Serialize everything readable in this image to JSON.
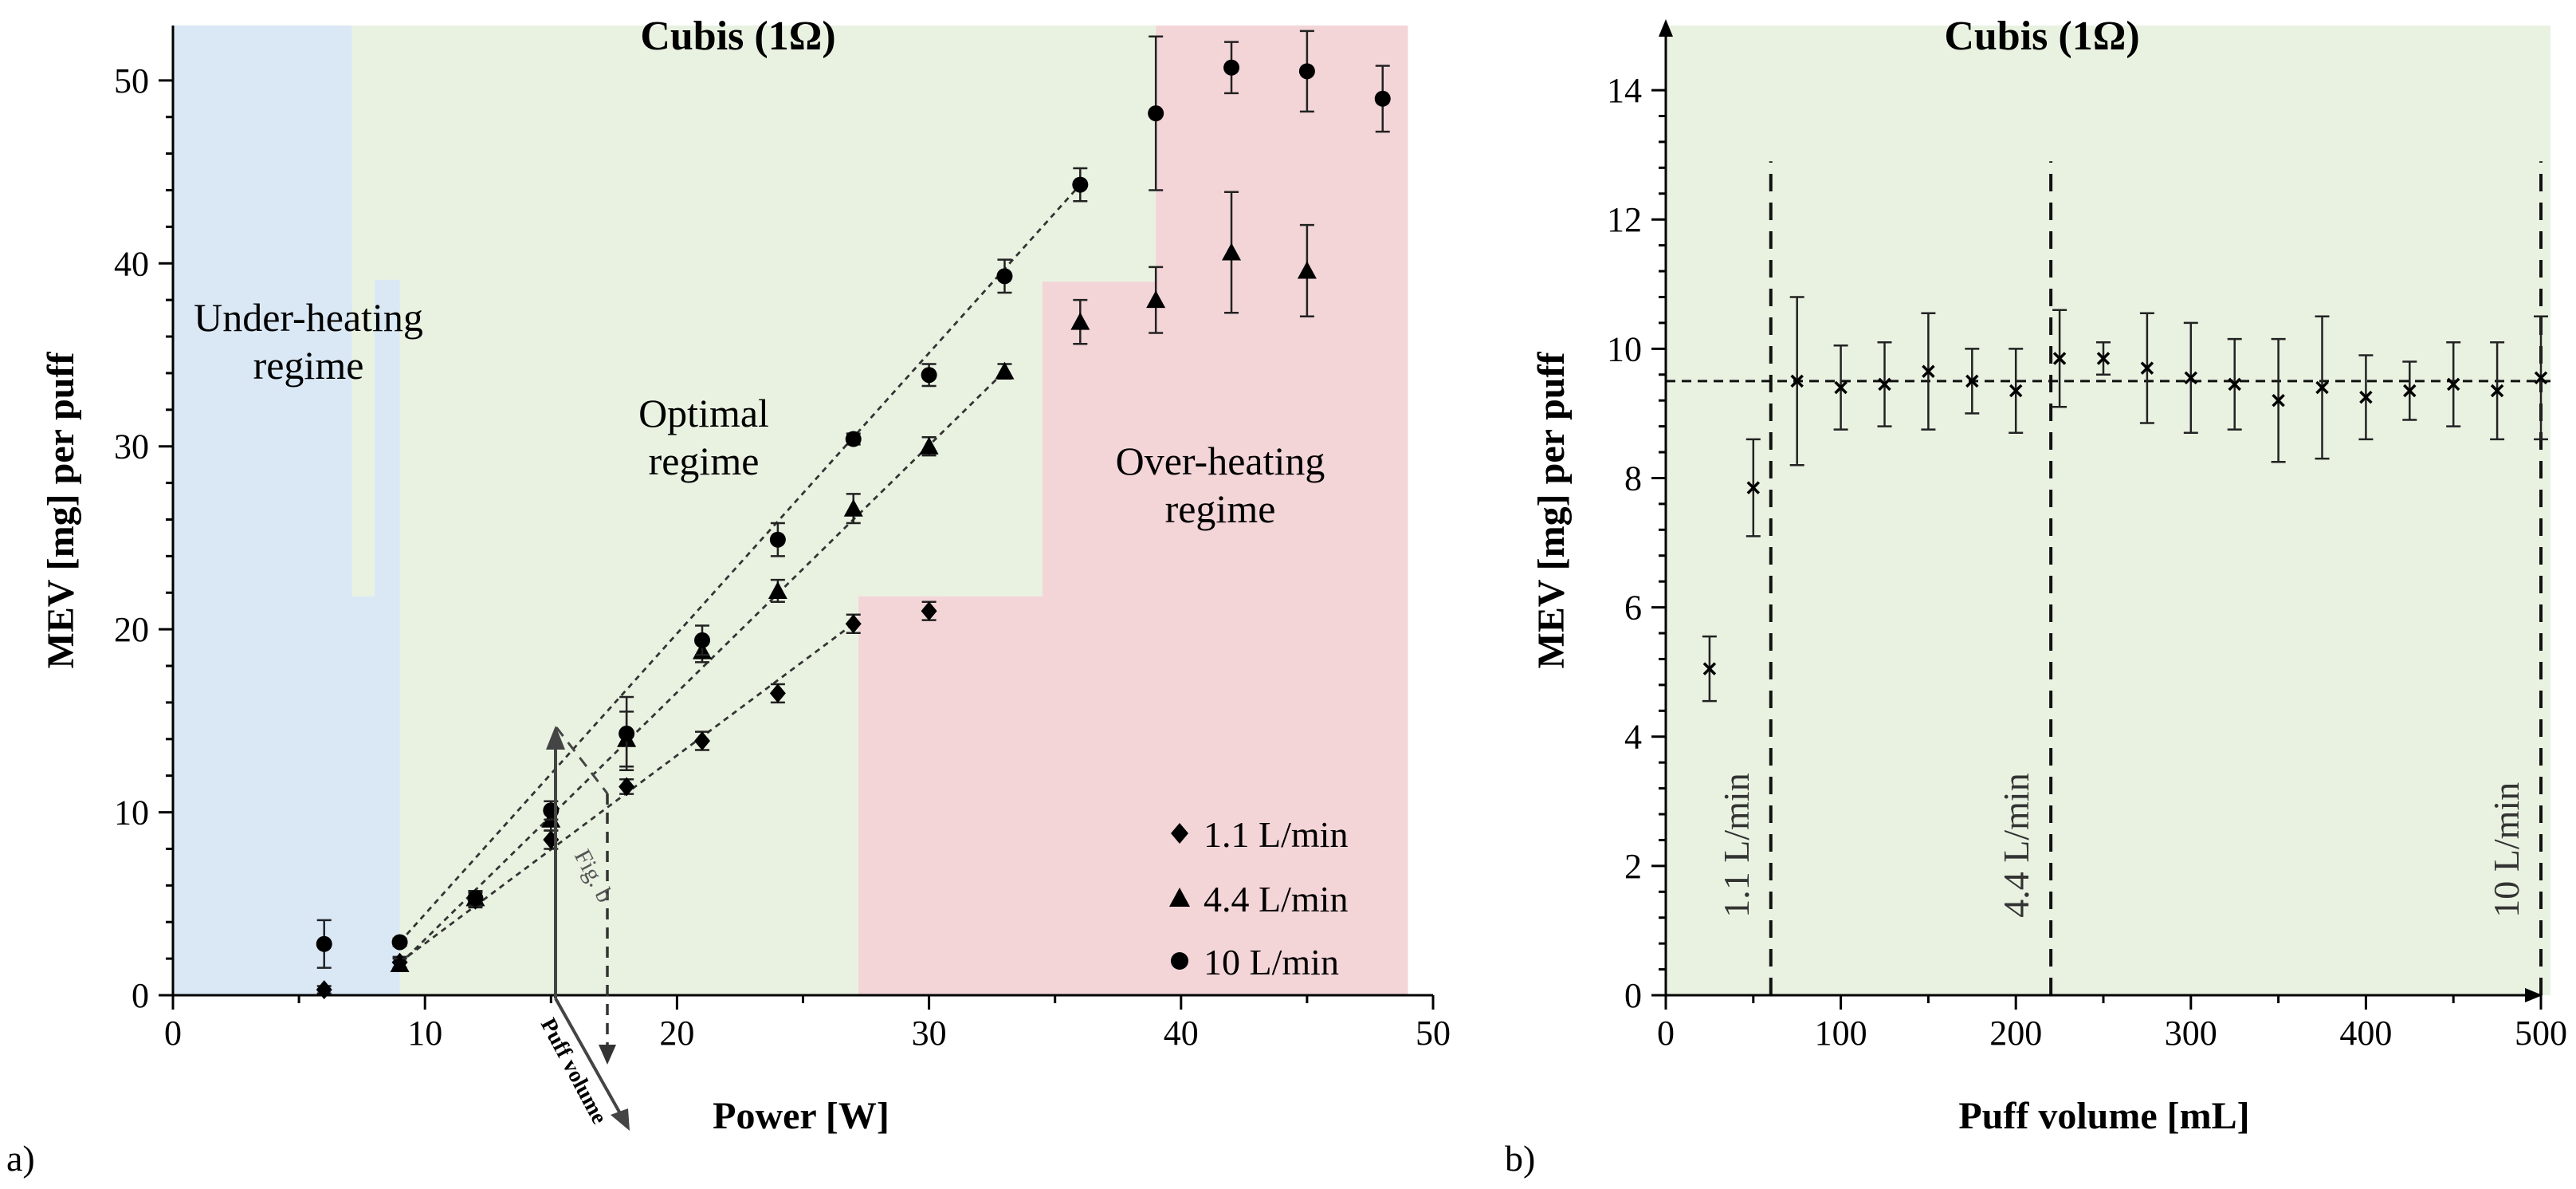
{
  "panel_labels": {
    "a": "a)",
    "b": "b)"
  },
  "colors": {
    "under_bg": "#dae8f5",
    "optimal_bg": "#e9f2e1",
    "over_bg": "#f3d5d8",
    "under_text": "#2e75b6",
    "optimal_text": "#4f7a33",
    "over_text": "#c00000",
    "marker": "#000000"
  },
  "chart_data": [
    {
      "id": "a",
      "type": "scatter",
      "title": "Cubis (1Ω)",
      "xlabel": "Power [W]",
      "ylabel": "MEV [mg] per puff",
      "xlim": [
        0,
        50
      ],
      "ylim": [
        0,
        53
      ],
      "xticks": [
        0,
        10,
        20,
        30,
        40,
        50
      ],
      "yticks": [
        0,
        10,
        20,
        30,
        40,
        50
      ],
      "regimes": [
        {
          "name": "under",
          "label_lines": [
            "Under-heating",
            "regime"
          ],
          "steps": [
            [
              0,
              53
            ],
            [
              7.1,
              53
            ],
            [
              7.1,
              21.8
            ],
            [
              8.0,
              21.8
            ],
            [
              8.0,
              39.1
            ],
            [
              9.0,
              39.1
            ],
            [
              9.0,
              53
            ]
          ]
        },
        {
          "name": "optimal",
          "label_lines": [
            "Optimal",
            "regime"
          ]
        },
        {
          "name": "over",
          "label_lines": [
            "Over-heating",
            "regime"
          ],
          "steps": [
            [
              27.2,
              0
            ],
            [
              27.2,
              21.8
            ],
            [
              34.5,
              21.8
            ],
            [
              34.5,
              39.0
            ],
            [
              39.0,
              39.0
            ],
            [
              39.0,
              53
            ],
            [
              49.0,
              53
            ],
            [
              49.0,
              0
            ]
          ]
        }
      ],
      "series": [
        {
          "name": "1.1 L/min",
          "marker": "diamond",
          "x": [
            6,
            9,
            12,
            15,
            18,
            21,
            24,
            27,
            30
          ],
          "y": [
            0.3,
            1.8,
            5.2,
            8.5,
            11.4,
            13.9,
            16.5,
            20.3,
            21.0
          ],
          "err": [
            0.2,
            0.3,
            0.4,
            0.5,
            0.4,
            0.5,
            0.5,
            0.5,
            0.5
          ],
          "fit": [
            [
              9,
              1.8
            ],
            [
              27,
              20.3
            ]
          ]
        },
        {
          "name": "4.4 L/min",
          "marker": "triangle",
          "x": [
            9,
            12,
            15,
            18,
            21,
            24,
            27,
            30,
            33,
            36,
            39,
            42,
            45
          ],
          "y": [
            1.7,
            5.3,
            9.6,
            14.0,
            18.8,
            22.1,
            26.6,
            30.0,
            34.1,
            36.8,
            38.0,
            40.6,
            39.6
          ],
          "err": [
            0.3,
            0.4,
            0.6,
            1.5,
            0.6,
            0.6,
            0.8,
            0.5,
            0.4,
            1.2,
            1.8,
            3.3,
            2.5
          ],
          "fit": [
            [
              9,
              1.7
            ],
            [
              33,
              34.1
            ]
          ]
        },
        {
          "name": "10 L/min",
          "marker": "circle",
          "x": [
            6,
            9,
            12,
            15,
            18,
            21,
            24,
            27,
            30,
            33,
            36,
            39,
            42,
            45,
            48
          ],
          "y": [
            2.8,
            2.9,
            5.3,
            10.1,
            14.3,
            19.4,
            24.9,
            30.4,
            33.9,
            39.3,
            44.3,
            48.2,
            50.7,
            50.5,
            49.0
          ],
          "err": [
            1.3,
            0.2,
            0.4,
            0.5,
            2.0,
            0.8,
            0.9,
            0.3,
            0.6,
            0.9,
            0.9,
            4.2,
            1.4,
            2.2,
            1.8
          ],
          "fit": [
            [
              9,
              2.9
            ],
            [
              36,
              44.3
            ]
          ]
        }
      ],
      "legend": [
        "1.1 L/min",
        "4.4 L/min",
        "10 L/min"
      ],
      "annotations": {
        "puff_volume": "Puff volume",
        "fig_b": "Fig. b"
      }
    },
    {
      "id": "b",
      "type": "scatter",
      "title": "Cubis (1Ω)",
      "xlabel": "Puff volume [mL]",
      "ylabel": "MEV [mg] per puff",
      "xlim": [
        0,
        500
      ],
      "ylim": [
        0,
        15
      ],
      "xticks": [
        0,
        100,
        200,
        300,
        400,
        500
      ],
      "yticks": [
        0,
        2,
        4,
        6,
        8,
        10,
        12,
        14
      ],
      "series": [
        {
          "name": "MEV",
          "marker": "x",
          "x": [
            25,
            50,
            75,
            100,
            125,
            150,
            175,
            200,
            225,
            250,
            275,
            300,
            325,
            350,
            375,
            400,
            425,
            450,
            475,
            500
          ],
          "y": [
            5.05,
            7.85,
            9.5,
            9.4,
            9.45,
            9.65,
            9.5,
            9.35,
            9.85,
            9.85,
            9.7,
            9.55,
            9.45,
            9.2,
            9.4,
            9.25,
            9.35,
            9.45,
            9.35,
            9.55
          ],
          "err": [
            0.5,
            0.75,
            1.3,
            0.65,
            0.65,
            0.9,
            0.5,
            0.65,
            0.75,
            0.25,
            0.85,
            0.85,
            0.7,
            0.95,
            1.1,
            0.65,
            0.45,
            0.65,
            0.75,
            0.95
          ]
        }
      ],
      "mean_line": 9.5,
      "flow_lines": [
        {
          "x": 60,
          "label": "1.1 L/min"
        },
        {
          "x": 220,
          "label": "4.4 L/min"
        },
        {
          "x": 500,
          "label": "10 L/min"
        }
      ]
    }
  ]
}
